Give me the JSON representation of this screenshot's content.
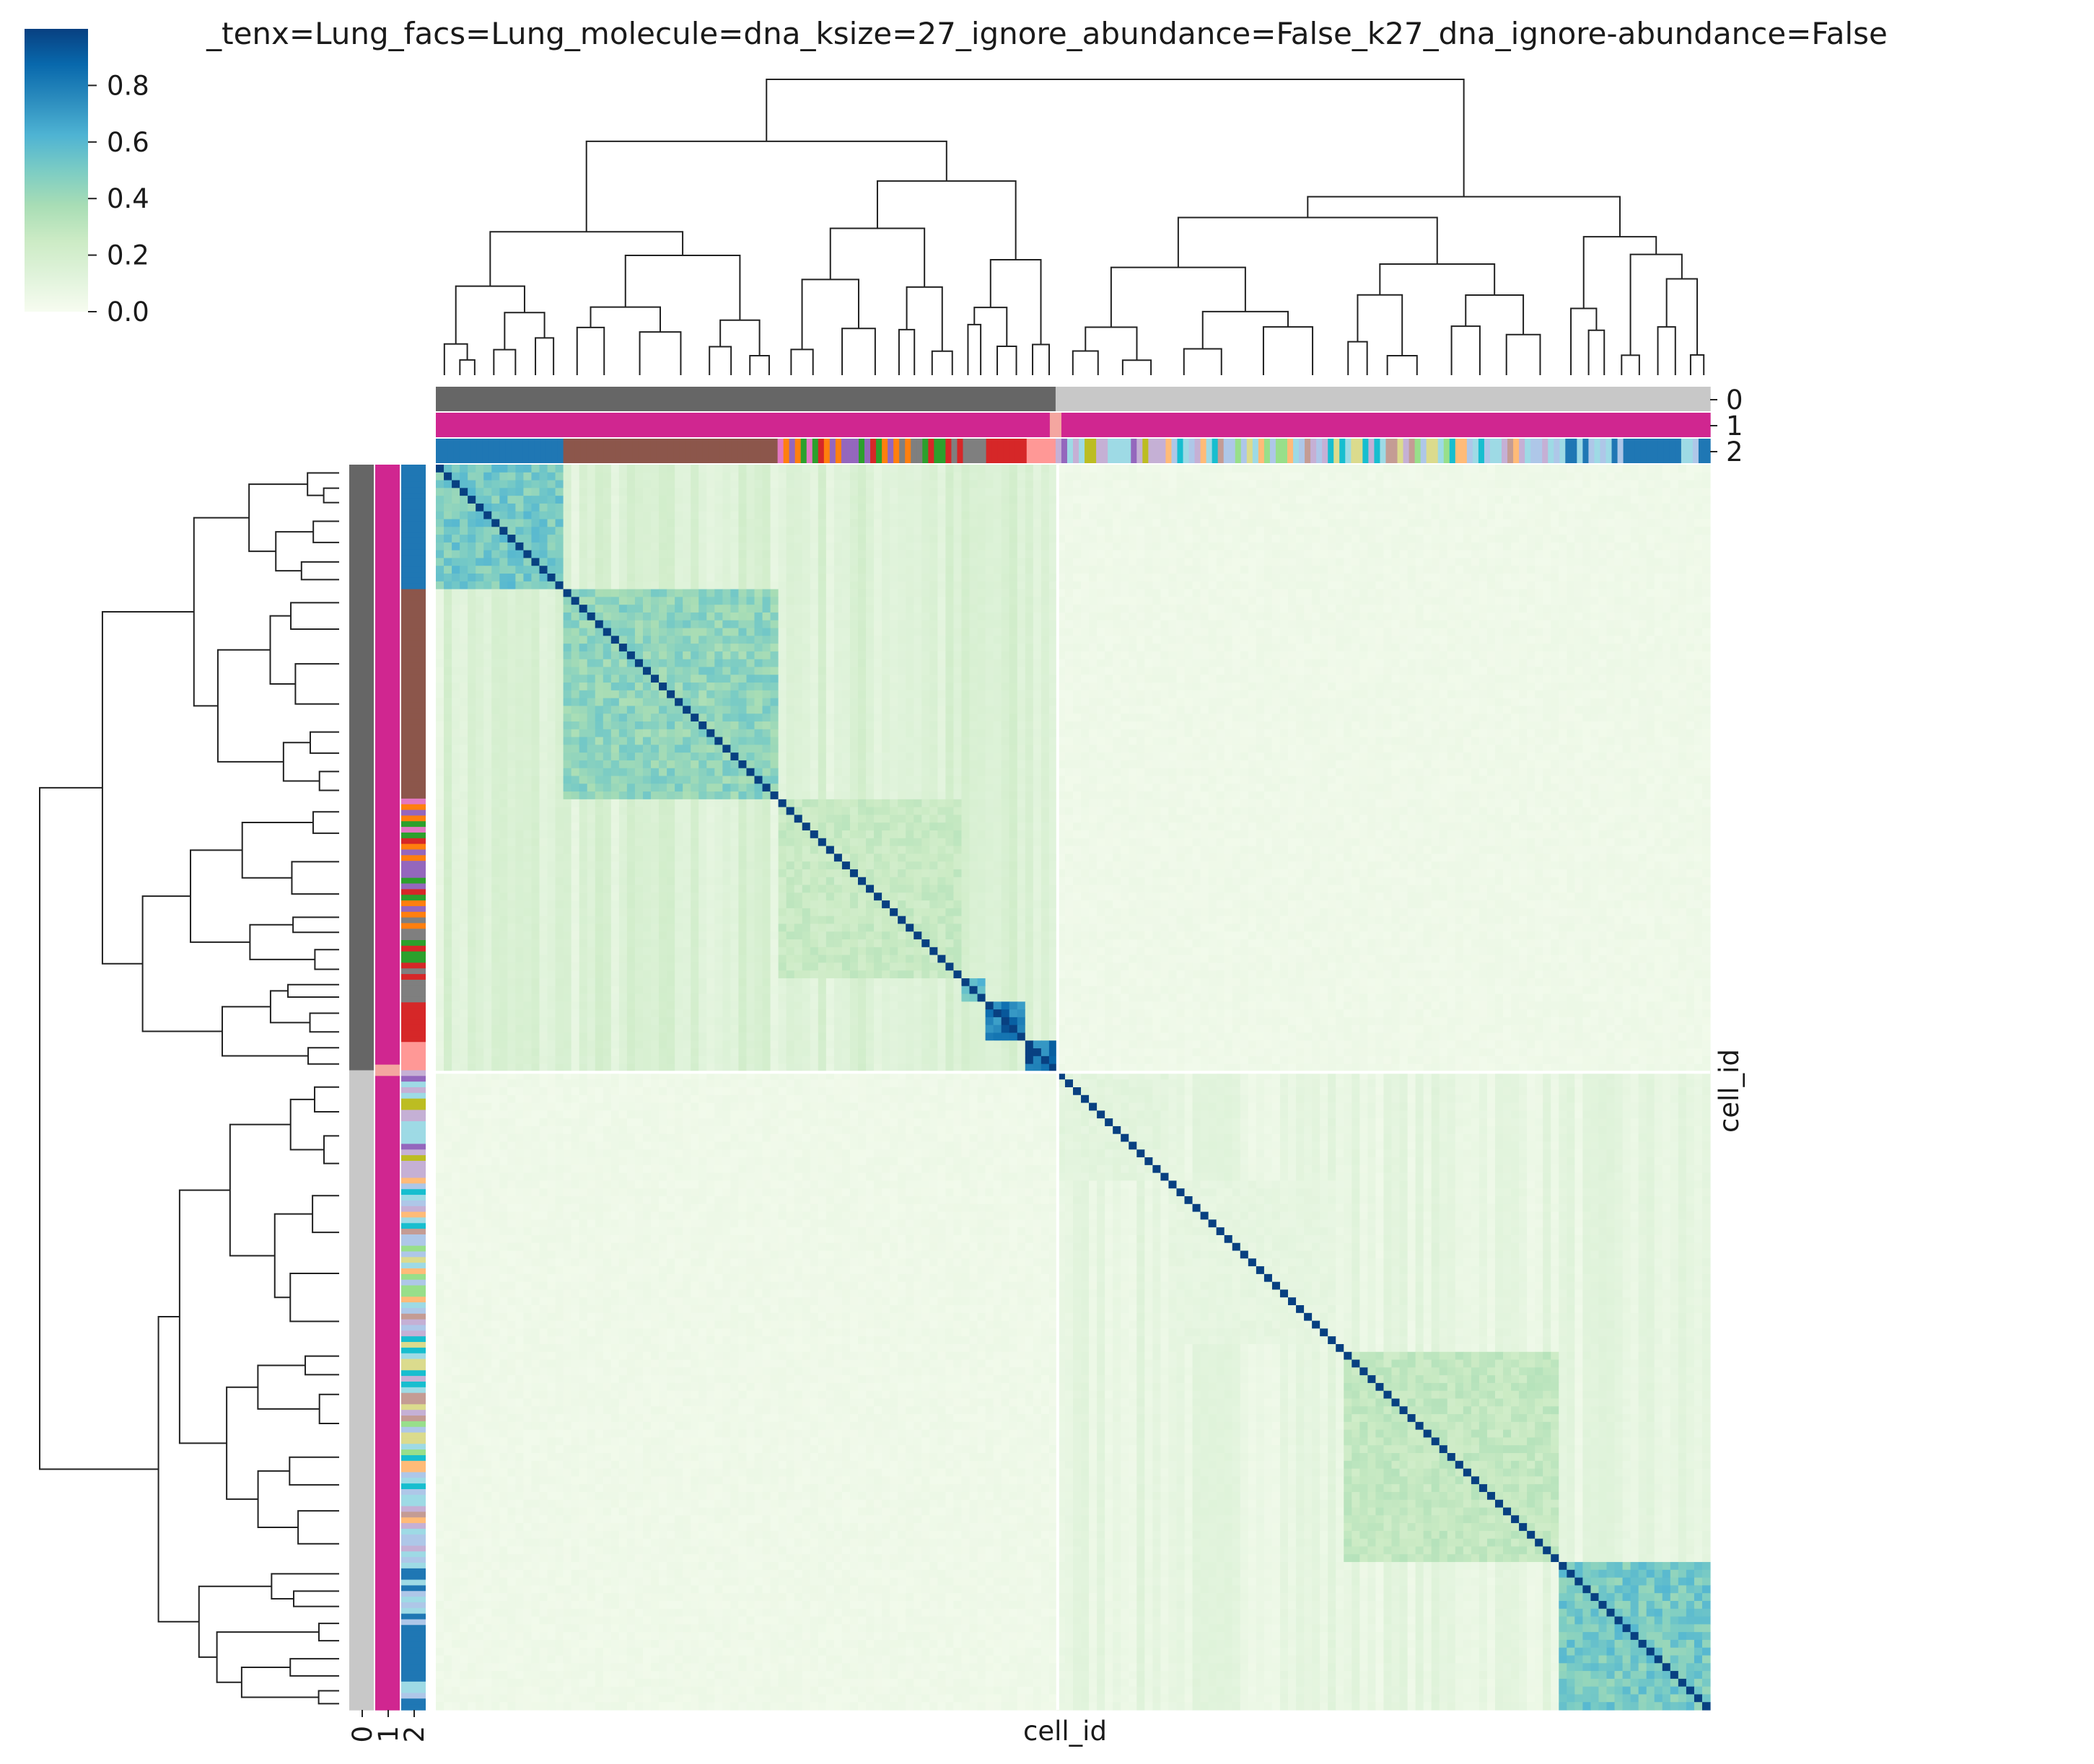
{
  "chart_data": {
    "type": "heatmap",
    "title": "_tenx=Lung_facs=Lung_molecule=dna_ksize=27_ignore_abundance=False_k27_dna_ignore-abundance=False",
    "xlabel": "cell_id",
    "ylabel": "cell_id",
    "colormap": "GnBu",
    "colorbar": {
      "ticks": [
        0.0,
        0.2,
        0.4,
        0.6,
        0.8
      ],
      "tick_labels": [
        "0.0",
        "0.2",
        "0.4",
        "0.6",
        "0.8"
      ],
      "range": [
        0.0,
        1.0
      ]
    },
    "color_stops": [
      "#f7fcf0",
      "#e0f3db",
      "#ccebc5",
      "#a8ddb5",
      "#7bccc4",
      "#4eb3d3",
      "#2b8cbe",
      "#0868ac",
      "#084081"
    ],
    "annotation_track_labels": [
      "0",
      "1",
      "2"
    ],
    "diagonal_value": 1.0,
    "blocks": [
      {
        "span": [
          0.0,
          0.099
        ],
        "within": 0.55
      },
      {
        "span": [
          0.099,
          0.27
        ],
        "within": 0.48
      },
      {
        "span": [
          0.27,
          0.412
        ],
        "within": 0.28
      },
      {
        "span": [
          0.412,
          0.48
        ],
        "within": 0.32
      },
      {
        "span": [
          0.48,
          0.412
        ],
        "within": 0.0
      },
      {
        "span": [
          0.412,
          0.432
        ],
        "within": 0.65
      },
      {
        "span": [
          0.432,
          0.462
        ],
        "within": 0.88
      },
      {
        "span": [
          0.462,
          0.488
        ],
        "within": 0.95
      },
      {
        "span": [
          0.49,
          0.572
        ],
        "within": 0.12
      },
      {
        "span": [
          0.572,
          0.708
        ],
        "within": 0.1
      },
      {
        "span": [
          0.708,
          0.71
        ],
        "within": 0.1
      },
      {
        "span": [
          0.708,
          0.882
        ],
        "within": 0.3
      },
      {
        "span": [
          0.882,
          1.0
        ],
        "within": 0.55
      }
    ],
    "track_colors": {
      "track0": [
        "#666666",
        "#c8c8c8"
      ],
      "track1": [
        "#d02690",
        "#f4a6a0"
      ],
      "track2_palette": [
        "#1f77b4",
        "#8c564b",
        "#2ca02c",
        "#ff7f0e",
        "#9467bd",
        "#e377c2",
        "#7f7f7f",
        "#d62728",
        "#ff9896",
        "#c5b0d5",
        "#bcbd22",
        "#9edae5",
        "#17becf",
        "#aec7e8",
        "#98df8a",
        "#ffbb78",
        "#c49c94",
        "#dbdb8d"
      ]
    }
  }
}
